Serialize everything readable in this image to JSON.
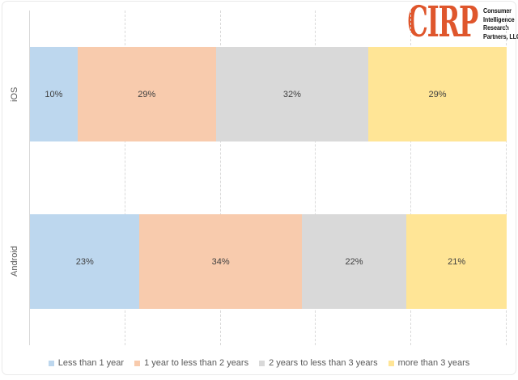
{
  "logo": {
    "brand": "CIRP",
    "brand_color": "#df562c",
    "tagline_lines": [
      "Consumer",
      "Intelligence",
      "Research",
      "Partners, LLC"
    ]
  },
  "chart_data": {
    "type": "bar",
    "orientation": "horizontal",
    "stacked": true,
    "value_format": "percent",
    "title": "",
    "categories": [
      "iOS",
      "Android"
    ],
    "series": [
      {
        "name": "Less than 1 year",
        "color": "#bdd7ee",
        "values": [
          10,
          23
        ]
      },
      {
        "name": "1 year to less than 2 years",
        "color": "#f8cbad",
        "values": [
          29,
          34
        ]
      },
      {
        "name": "2 years to less than 3 years",
        "color": "#d9d9d9",
        "values": [
          32,
          22
        ]
      },
      {
        "name": "more than 3 years",
        "color": "#ffe596",
        "values": [
          29,
          21
        ]
      }
    ],
    "xlim": [
      0,
      100
    ],
    "gridlines_percent": [
      20,
      40,
      60,
      80,
      100
    ],
    "grid_style": "dashed",
    "grid_color": "#d9d9d9",
    "axis_line_color": "#d9d9d9",
    "data_label_color": "#404040",
    "legend_position": "bottom",
    "data_labels": true
  }
}
